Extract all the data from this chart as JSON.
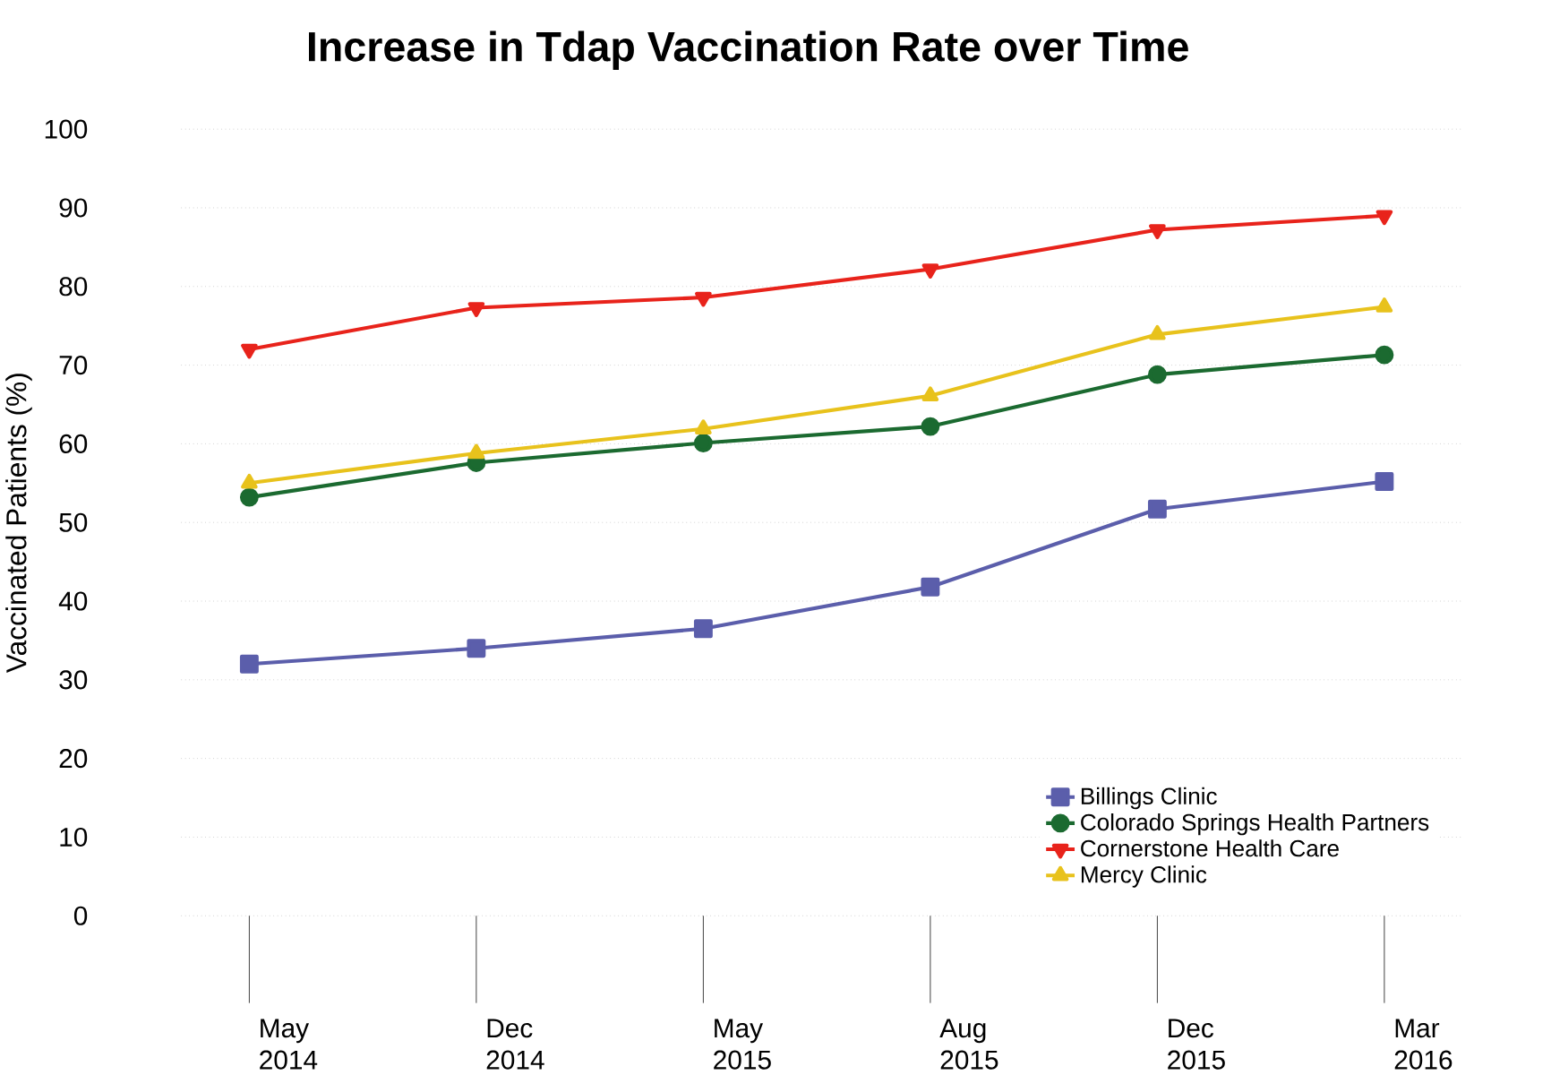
{
  "chart_data": {
    "type": "line",
    "title": "Increase in Tdap Vaccination Rate over Time",
    "ylabel": "Vaccinated Patients (%)",
    "categories": [
      "May 2014",
      "Dec 2014",
      "May 2015",
      "Aug 2015",
      "Dec 2015",
      "Mar 2016"
    ],
    "series": [
      {
        "name": "Billings Clinic",
        "color": "#5b5eab",
        "marker": "square",
        "values": [
          32,
          34,
          36.5,
          41.8,
          51.7,
          55.2
        ]
      },
      {
        "name": "Colorado Springs Health Partners",
        "color": "#1b6a30",
        "marker": "circle",
        "values": [
          53.2,
          57.6,
          60.1,
          62.2,
          68.8,
          71.3
        ]
      },
      {
        "name": "Cornerstone Health Care",
        "color": "#e8231b",
        "marker": "triangle down",
        "values": [
          72,
          77.3,
          78.6,
          82.2,
          87.2,
          89
        ]
      },
      {
        "name": "Mercy Clinic",
        "color": "#e8c21c",
        "marker": "triangle",
        "values": [
          55,
          58.8,
          61.9,
          66.1,
          73.9,
          77.4
        ]
      }
    ],
    "ylim": [
      0,
      100
    ],
    "yticks": [
      0,
      10,
      20,
      30,
      40,
      50,
      60,
      70,
      80,
      90,
      100
    ],
    "grid": "y",
    "legend": "bottom right",
    "line_style": "solid"
  }
}
